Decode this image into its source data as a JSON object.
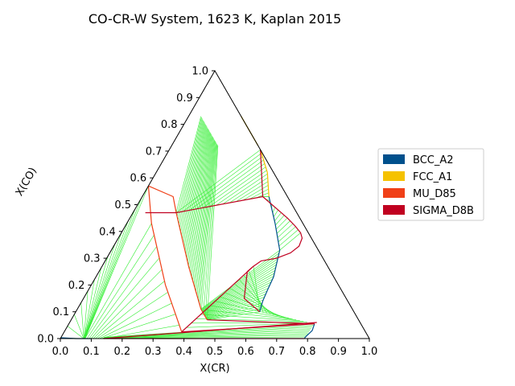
{
  "chart_data": {
    "type": "ternary-phase-diagram",
    "title": "CO-CR-W System, 1623 K, Kaplan 2015",
    "xlabel": "X(CR)",
    "ylabel": "X(CO)",
    "xlim": [
      0.0,
      1.0
    ],
    "ylim": [
      0.0,
      1.0
    ],
    "ticks": [
      "0.0",
      "0.1",
      "0.2",
      "0.3",
      "0.4",
      "0.5",
      "0.6",
      "0.7",
      "0.8",
      "0.9",
      "1.0"
    ],
    "legend": {
      "placement": "right",
      "entries": [
        {
          "name": "BCC_A2",
          "color": "#00508c"
        },
        {
          "name": "FCC_A1",
          "color": "#f5c200"
        },
        {
          "name": "MU_D85",
          "color": "#f04018"
        },
        {
          "name": "SIGMA_D8B",
          "color": "#c00020"
        }
      ]
    },
    "tie_line_color": "#33ee33",
    "boundaries": [
      {
        "phase": "FCC_A1",
        "points": [
          [
            0.17,
            0.83
          ],
          [
            0.225,
            0.775
          ],
          [
            0.28,
            0.72
          ]
        ]
      },
      {
        "phase": "FCC_A1",
        "points": [
          [
            0.295,
            0.705
          ],
          [
            0.36,
            0.62
          ],
          [
            0.41,
            0.53
          ]
        ]
      },
      {
        "phase": "BCC_A2",
        "points": [
          [
            0.41,
            0.53
          ],
          [
            0.48,
            0.43
          ],
          [
            0.545,
            0.33
          ],
          [
            0.56,
            0.28
          ],
          [
            0.575,
            0.23
          ],
          [
            0.58,
            0.18
          ],
          [
            0.585,
            0.14
          ],
          [
            0.595,
            0.1
          ]
        ]
      },
      {
        "phase": "BCC_A2",
        "points": [
          [
            0.795,
            0.055
          ],
          [
            0.8,
            0.03
          ],
          [
            0.79,
            0.005
          ],
          [
            0.79,
            0.0
          ]
        ]
      },
      {
        "phase": "BCC_A2",
        "points": [
          [
            0.0,
            0.003
          ],
          [
            0.05,
            0.0
          ],
          [
            0.1,
            0.0
          ]
        ]
      },
      {
        "phase": "MU_D85",
        "points": [
          [
            0.0,
            0.57
          ],
          [
            0.1,
            0.53
          ],
          [
            0.14,
            0.47
          ]
        ]
      },
      {
        "phase": "MU_D85",
        "points": [
          [
            0.0,
            0.57
          ],
          [
            0.08,
            0.43
          ],
          [
            0.24,
            0.2
          ],
          [
            0.36,
            0.05
          ],
          [
            0.38,
            0.025
          ]
        ]
      },
      {
        "phase": "MU_D85",
        "points": [
          [
            0.14,
            0.47
          ],
          [
            0.28,
            0.27
          ],
          [
            0.4,
            0.11
          ],
          [
            0.44,
            0.07
          ]
        ]
      },
      {
        "phase": "SIGMA_D8B",
        "points": [
          [
            0.39,
            0.53
          ],
          [
            0.51,
            0.45
          ],
          [
            0.55,
            0.42
          ],
          [
            0.58,
            0.395
          ],
          [
            0.595,
            0.375
          ],
          [
            0.6,
            0.345
          ],
          [
            0.585,
            0.32
          ],
          [
            0.55,
            0.3
          ],
          [
            0.505,
            0.29
          ],
          [
            0.49,
            0.27
          ],
          [
            0.48,
            0.25
          ],
          [
            0.52,
            0.15
          ],
          [
            0.595,
            0.1
          ]
        ]
      },
      {
        "phase": "SIGMA_D8B",
        "points": [
          [
            0.295,
            0.705
          ],
          [
            0.39,
            0.53
          ]
        ]
      },
      {
        "phase": "SIGMA_D8B",
        "points": [
          [
            0.04,
            0.47
          ],
          [
            0.14,
            0.47
          ],
          [
            0.39,
            0.53
          ]
        ]
      },
      {
        "phase": "SIGMA_D8B",
        "points": [
          [
            0.38,
            0.025
          ],
          [
            0.49,
            0.27
          ]
        ]
      },
      {
        "phase": "SIGMA_D8B",
        "points": [
          [
            0.38,
            0.025
          ],
          [
            0.795,
            0.055
          ]
        ]
      },
      {
        "phase": "SIGMA_D8B",
        "points": [
          [
            0.44,
            0.07
          ],
          [
            0.795,
            0.055
          ]
        ]
      },
      {
        "phase": "SIGMA_D8B",
        "points": [
          [
            0.14,
            0.0
          ],
          [
            0.8,
            0.06
          ]
        ]
      },
      {
        "phase": "SIGMA_D8B",
        "points": [
          [
            0.14,
            0.0
          ],
          [
            0.79,
            0.0
          ]
        ]
      }
    ],
    "tie_fans": [
      {
        "from": [
          [
            0.14,
            0.47
          ],
          [
            0.28,
            0.27
          ],
          [
            0.4,
            0.11
          ],
          [
            0.44,
            0.07
          ]
        ],
        "to": [
          [
            0.04,
            0.83
          ],
          [
            0.1,
            0.77
          ],
          [
            0.15,
            0.72
          ]
        ],
        "count": 30
      },
      {
        "from": [
          [
            0.14,
            0.47
          ],
          [
            0.39,
            0.53
          ]
        ],
        "to": [
          [
            0.295,
            0.705
          ],
          [
            0.36,
            0.62
          ],
          [
            0.41,
            0.53
          ]
        ],
        "count": 14
      },
      {
        "from": [
          [
            0.0,
            0.003
          ],
          [
            0.0,
            0.57
          ]
        ],
        "to": [
          [
            0.075,
            0.0
          ],
          [
            0.08,
            0.0
          ]
        ],
        "count": 14
      },
      {
        "from": [
          [
            0.08,
            0.43
          ],
          [
            0.24,
            0.2
          ],
          [
            0.36,
            0.05
          ]
        ],
        "to": [
          [
            0.08,
            0.0
          ],
          [
            0.14,
            0.0
          ]
        ],
        "count": 10
      },
      {
        "from": [
          [
            0.39,
            0.53
          ],
          [
            0.51,
            0.45
          ],
          [
            0.55,
            0.42
          ],
          [
            0.58,
            0.395
          ]
        ],
        "to": [
          [
            0.41,
            0.53
          ],
          [
            0.48,
            0.43
          ],
          [
            0.545,
            0.33
          ]
        ],
        "count": 14
      },
      {
        "from": [
          [
            0.4,
            0.11
          ],
          [
            0.44,
            0.07
          ]
        ],
        "to": [
          [
            0.545,
            0.33
          ],
          [
            0.56,
            0.28
          ],
          [
            0.575,
            0.23
          ],
          [
            0.58,
            0.18
          ],
          [
            0.585,
            0.14
          ],
          [
            0.595,
            0.1
          ]
        ],
        "count": 22
      },
      {
        "from": [
          [
            0.49,
            0.27
          ],
          [
            0.38,
            0.025
          ]
        ],
        "to": [
          [
            0.595,
            0.1
          ],
          [
            0.795,
            0.055
          ]
        ],
        "count": 16
      },
      {
        "from": [
          [
            0.14,
            0.0
          ],
          [
            0.14,
            0.005
          ]
        ],
        "to": [
          [
            0.79,
            0.0
          ],
          [
            0.795,
            0.055
          ]
        ],
        "count": 10
      }
    ]
  }
}
